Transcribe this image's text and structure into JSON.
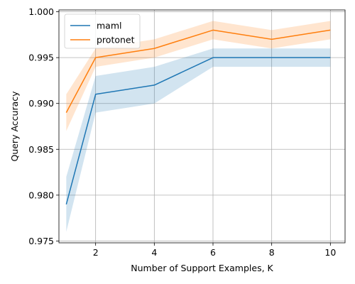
{
  "chart_data": {
    "type": "line",
    "xlabel": "Number of Support Examples, K",
    "ylabel": "Query Accuracy",
    "xlim": [
      0.75,
      10.5
    ],
    "ylim": [
      0.9748,
      1.0002
    ],
    "xticks": [
      2,
      4,
      6,
      8,
      10
    ],
    "yticks": [
      0.975,
      0.98,
      0.985,
      0.99,
      0.995,
      1.0
    ],
    "xtick_labels": [
      "2",
      "4",
      "6",
      "8",
      "10"
    ],
    "ytick_labels": [
      "0.975",
      "0.980",
      "0.985",
      "0.990",
      "0.995",
      "1.000"
    ],
    "grid": true,
    "legend_position": "top-left",
    "x": [
      1,
      2,
      4,
      6,
      8,
      10
    ],
    "series": [
      {
        "name": "maml",
        "color": "#1f77b4",
        "values": [
          0.979,
          0.991,
          0.992,
          0.995,
          0.995,
          0.995
        ],
        "lower": [
          0.976,
          0.989,
          0.99,
          0.994,
          0.994,
          0.994
        ],
        "upper": [
          0.982,
          0.993,
          0.994,
          0.996,
          0.996,
          0.996
        ]
      },
      {
        "name": "protonet",
        "color": "#ff7f0e",
        "values": [
          0.989,
          0.995,
          0.996,
          0.998,
          0.997,
          0.998
        ],
        "lower": [
          0.987,
          0.994,
          0.995,
          0.997,
          0.996,
          0.997
        ],
        "upper": [
          0.991,
          0.996,
          0.997,
          0.999,
          0.998,
          0.999
        ]
      }
    ]
  }
}
